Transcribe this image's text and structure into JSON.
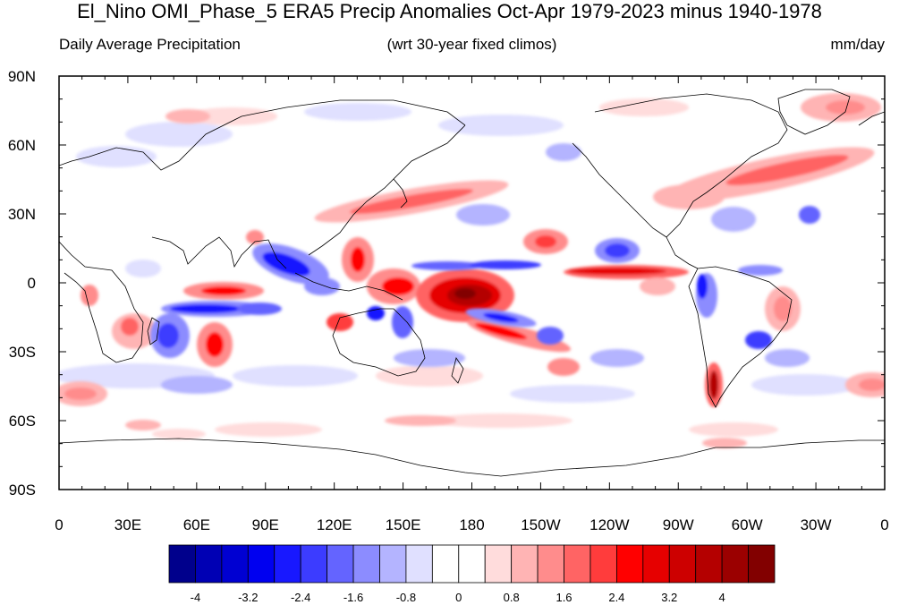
{
  "title": "El_Nino OMI_Phase_5 ERA5 Precip Anomalies Oct-Apr 1979-2023 minus 1940-1978",
  "subtitle_left": "Daily Average Precipitation",
  "subtitle_center": "(wrt 30-year fixed climos)",
  "subtitle_right": "mm/day",
  "lat_labels": [
    "90N",
    "60N",
    "30N",
    "0",
    "30S",
    "60S",
    "90S"
  ],
  "lon_labels": [
    "0",
    "30E",
    "60E",
    "90E",
    "120E",
    "150E",
    "180",
    "150W",
    "120W",
    "90W",
    "60W",
    "30W",
    "0"
  ],
  "colorbar": {
    "labels": [
      "-4",
      "-3.2",
      "-2.4",
      "-1.6",
      "-0.8",
      "0",
      "0.8",
      "1.6",
      "2.4",
      "3.2",
      "4"
    ],
    "colors": [
      "#00008c",
      "#0000b4",
      "#0000d2",
      "#0000f0",
      "#1818ff",
      "#3c3cff",
      "#6464ff",
      "#8c8cff",
      "#b4b4ff",
      "#e0e0ff",
      "#ffffff",
      "#ffffff",
      "#ffdcdc",
      "#ffb4b4",
      "#ff8c8c",
      "#ff6464",
      "#ff3c3c",
      "#ff0000",
      "#e60000",
      "#cd0000",
      "#b40000",
      "#9b0000",
      "#820000"
    ]
  }
}
